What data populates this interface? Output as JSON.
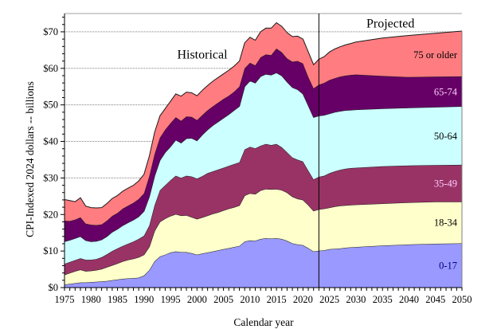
{
  "chart_data": {
    "type": "area",
    "stacked": true,
    "title": "",
    "xlabel": "Calendar year",
    "ylabel": "CPI-Indexed 2024 dollars -- billions",
    "xlim": [
      1975,
      2050
    ],
    "ylim": [
      0,
      75
    ],
    "grid": "horizontal dotted at $10 intervals",
    "x_ticks": [
      1975,
      1980,
      1985,
      1990,
      1995,
      2000,
      2005,
      2010,
      2015,
      2020,
      2025,
      2030,
      2035,
      2040,
      2045,
      2050
    ],
    "x_tick_labels": [
      "1975",
      "1980",
      "1985",
      "1990",
      "1995",
      "2000",
      "2005",
      "2010",
      "2015",
      "2020",
      "2025",
      "2030",
      "2035",
      "2040",
      "2045",
      "2050"
    ],
    "y_ticks": [
      0,
      10,
      20,
      30,
      40,
      50,
      60,
      70
    ],
    "y_tick_labels": [
      "$0",
      "$10",
      "$20",
      "$30",
      "$40",
      "$50",
      "$60",
      "$70"
    ],
    "annotations": [
      {
        "text": "Historical",
        "x": 2001,
        "y": 64
      },
      {
        "text": "Projected",
        "x": 2036.5,
        "y": 72.5
      }
    ],
    "divider_year": 2023,
    "x": [
      1975,
      1976,
      1977,
      1978,
      1979,
      1980,
      1981,
      1982,
      1983,
      1984,
      1985,
      1986,
      1987,
      1988,
      1989,
      1990,
      1991,
      1992,
      1993,
      1994,
      1995,
      1996,
      1997,
      1998,
      1999,
      2000,
      2001,
      2002,
      2003,
      2004,
      2005,
      2006,
      2007,
      2008,
      2009,
      2010,
      2011,
      2012,
      2013,
      2014,
      2015,
      2016,
      2017,
      2018,
      2019,
      2020,
      2021,
      2022,
      2023,
      2024,
      2025,
      2026,
      2027,
      2028,
      2029,
      2030,
      2035,
      2040,
      2045,
      2050
    ],
    "series": [
      {
        "name": "0-17",
        "color": "#9999ff",
        "label_color": "#000080",
        "values": [
          0.8,
          1.0,
          1.2,
          1.4,
          1.4,
          1.5,
          1.6,
          1.7,
          1.8,
          2.0,
          2.2,
          2.4,
          2.5,
          2.6,
          2.7,
          3.3,
          4.8,
          7.2,
          8.5,
          9.0,
          9.6,
          9.9,
          9.7,
          9.7,
          9.4,
          9.0,
          9.3,
          9.6,
          9.9,
          10.2,
          10.5,
          10.8,
          11.1,
          11.4,
          12.6,
          12.9,
          12.8,
          13.3,
          13.5,
          13.4,
          13.5,
          13.3,
          12.8,
          12.1,
          11.8,
          11.6,
          10.8,
          9.9,
          10.1,
          10.2,
          10.5,
          10.6,
          10.7,
          10.9,
          11.0,
          11.1,
          11.5,
          11.8,
          12.0,
          12.1
        ]
      },
      {
        "name": "18-34",
        "color": "#ffffcc",
        "label_color": "#000000",
        "values": [
          2.7,
          3.0,
          3.3,
          3.5,
          3.1,
          3.1,
          3.2,
          3.4,
          3.8,
          4.1,
          4.4,
          4.8,
          5.1,
          5.3,
          5.6,
          5.7,
          6.4,
          8.3,
          9.5,
          9.9,
          10.0,
          10.2,
          10.0,
          10.1,
          9.9,
          9.8,
          9.9,
          10.1,
          10.3,
          10.4,
          10.6,
          10.8,
          10.9,
          11.1,
          12.6,
          12.9,
          12.8,
          13.3,
          13.5,
          13.5,
          13.5,
          13.4,
          13.2,
          12.8,
          12.5,
          12.4,
          11.8,
          11.1,
          11.3,
          11.4,
          11.4,
          11.6,
          11.7,
          11.6,
          11.6,
          11.6,
          11.5,
          11.5,
          11.5,
          11.4
        ]
      },
      {
        "name": "35-49",
        "color": "#993366",
        "label_color": "#ffccff",
        "values": [
          3.0,
          3.0,
          3.0,
          3.1,
          3.1,
          3.0,
          3.0,
          3.2,
          3.5,
          3.9,
          4.1,
          4.2,
          4.4,
          4.7,
          5.0,
          5.2,
          5.8,
          7.0,
          8.6,
          9.1,
          9.8,
          10.5,
          10.3,
          10.8,
          11.1,
          11.0,
          11.3,
          11.6,
          11.6,
          11.7,
          11.7,
          11.7,
          11.8,
          11.8,
          12.6,
          12.7,
          12.5,
          12.2,
          12.3,
          12.1,
          12.3,
          11.7,
          11.0,
          10.7,
          10.7,
          10.5,
          9.4,
          8.6,
          8.9,
          9.0,
          9.4,
          9.6,
          9.8,
          10.0,
          10.1,
          10.1,
          10.2,
          10.1,
          10.0,
          10.1
        ]
      },
      {
        "name": "50-64",
        "color": "#ccffff",
        "label_color": "#000000",
        "values": [
          6.1,
          6.0,
          6.0,
          6.0,
          5.3,
          5.0,
          4.9,
          4.8,
          4.9,
          5.2,
          5.3,
          5.6,
          5.8,
          5.9,
          6.1,
          6.7,
          7.9,
          8.0,
          8.2,
          9.0,
          9.2,
          9.8,
          9.6,
          10.2,
          10.5,
          10.4,
          11.3,
          11.9,
          12.6,
          13.1,
          13.6,
          14.1,
          14.7,
          15.3,
          17.2,
          18.1,
          17.9,
          19.0,
          19.1,
          19.2,
          19.5,
          19.6,
          19.3,
          19.2,
          19.2,
          18.5,
          17.8,
          17.0,
          16.7,
          16.6,
          16.3,
          16.2,
          16.1,
          16.0,
          15.9,
          15.9,
          15.8,
          15.8,
          15.9,
          16.0
        ]
      },
      {
        "name": "65-74",
        "color": "#660066",
        "label_color": "#ffccff",
        "values": [
          5.7,
          5.2,
          5.1,
          5.2,
          4.6,
          4.6,
          4.4,
          4.2,
          4.3,
          4.4,
          4.4,
          4.6,
          4.6,
          4.7,
          4.8,
          4.9,
          5.6,
          6.0,
          6.2,
          6.2,
          6.4,
          6.2,
          6.0,
          6.0,
          5.8,
          5.6,
          5.4,
          5.3,
          5.2,
          5.2,
          5.2,
          5.1,
          5.1,
          5.4,
          5.0,
          4.9,
          4.8,
          5.2,
          5.4,
          5.4,
          6.6,
          6.4,
          6.4,
          7.0,
          7.8,
          8.3,
          7.8,
          7.9,
          8.5,
          8.8,
          9.2,
          9.3,
          9.4,
          9.5,
          9.6,
          9.6,
          8.9,
          8.4,
          8.3,
          8.2
        ]
      },
      {
        "name": "75 or older",
        "color": "#ff7c80",
        "label_color": "#000000",
        "values": [
          5.8,
          5.6,
          4.9,
          5.4,
          4.8,
          4.7,
          4.7,
          4.6,
          4.7,
          4.8,
          4.8,
          4.8,
          4.8,
          4.8,
          5.0,
          5.2,
          5.5,
          6.0,
          6.0,
          5.8,
          6.0,
          6.4,
          6.8,
          6.7,
          6.6,
          6.7,
          6.8,
          6.8,
          6.9,
          6.9,
          6.9,
          7.0,
          7.0,
          7.0,
          7.0,
          7.0,
          6.9,
          7.0,
          7.2,
          7.4,
          7.1,
          7.1,
          7.1,
          6.9,
          6.8,
          6.7,
          6.9,
          6.5,
          7.0,
          7.2,
          7.7,
          8.0,
          8.2,
          8.4,
          8.6,
          8.9,
          10.4,
          11.4,
          11.9,
          12.4
        ]
      }
    ]
  }
}
